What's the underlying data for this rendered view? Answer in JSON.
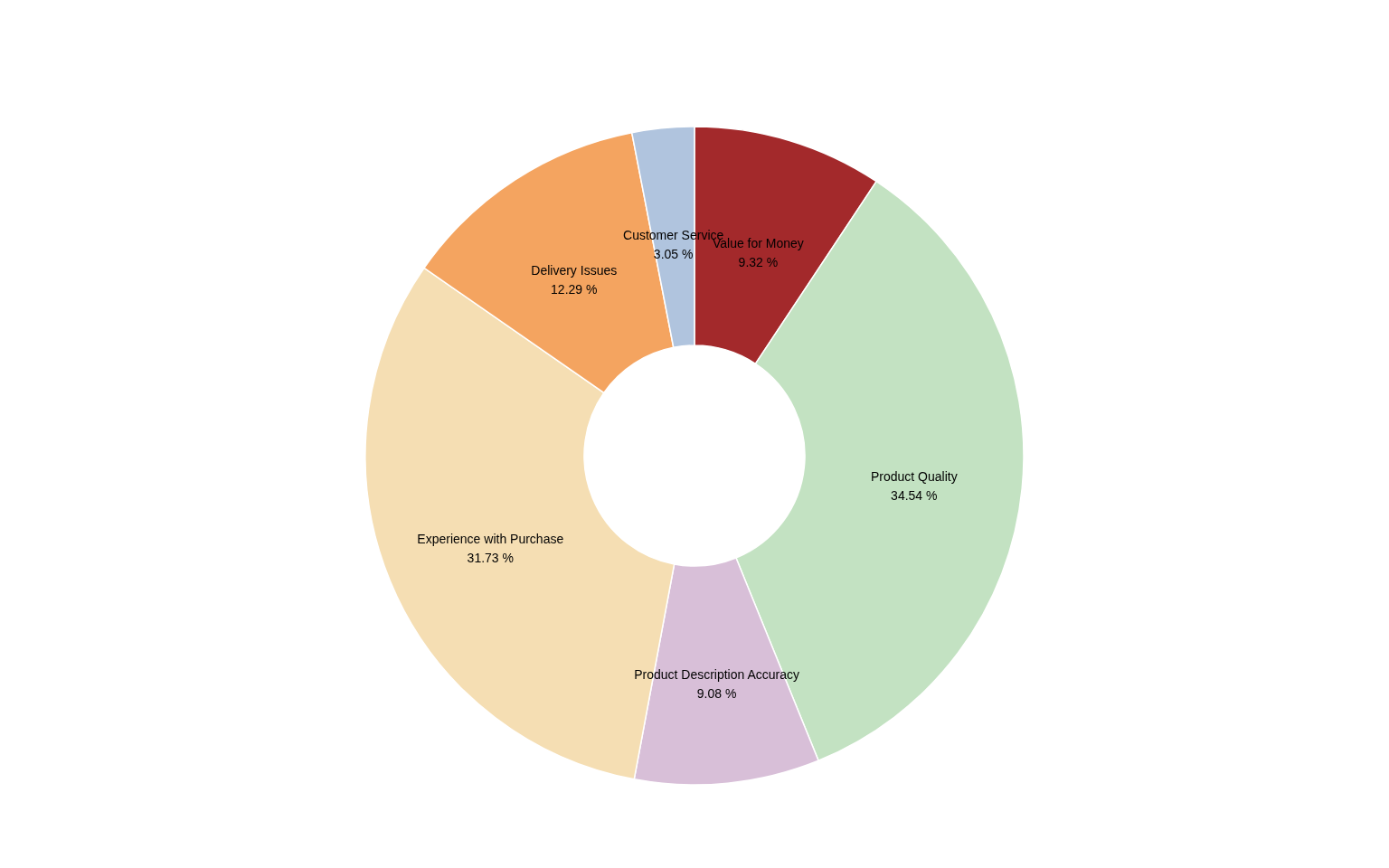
{
  "chart_data": {
    "type": "donut",
    "categories": [
      "Value for Money",
      "Product Quality",
      "Product Description Accuracy",
      "Experience with Purchase",
      "Delivery Issues",
      "Customer Service"
    ],
    "values": [
      9.32,
      34.54,
      9.08,
      31.73,
      12.29,
      3.05
    ],
    "value_labels": [
      "9.32 %",
      "34.54 %",
      "9.08 %",
      "31.73 %",
      "12.29 %",
      "3.05 %"
    ],
    "colors": [
      "#a3292b",
      "#c3e2c2",
      "#d8bfd8",
      "#f5deb3",
      "#f4a460",
      "#b0c4de"
    ],
    "legend": false
  }
}
